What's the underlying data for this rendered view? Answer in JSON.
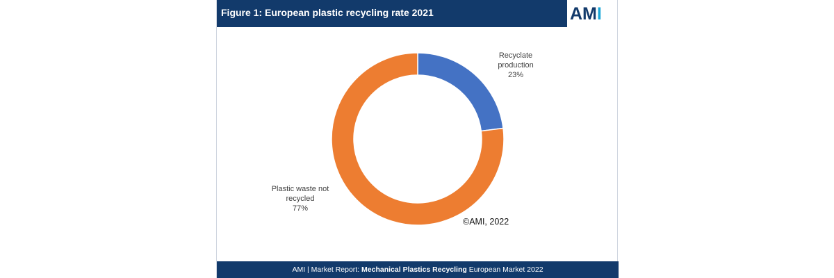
{
  "header": {
    "title": "Figure 1: European plastic recycling rate 2021",
    "logo_main": "AM",
    "logo_accent": "I"
  },
  "colors": {
    "header_bg": "#123a6b",
    "logo_accent": "#1aa7d8",
    "slice_recyclate": "#4472c4",
    "slice_not_recycled": "#ed7d31"
  },
  "chart_data": {
    "type": "pie",
    "style": "donut",
    "categories": [
      "Recyclate production",
      "Plastic waste not recycled"
    ],
    "values": [
      23,
      77
    ],
    "labels": [
      {
        "lines": [
          "Recyclate",
          "production",
          "23%"
        ]
      },
      {
        "lines": [
          "Plastic waste not",
          "recycled",
          "77%"
        ]
      }
    ],
    "colors": [
      "#4472c4",
      "#ed7d31"
    ]
  },
  "watermark": "©AMI, 2022",
  "footer": {
    "prefix": "AMI | Market Report: ",
    "bold": "Mechanical Plastics Recycling",
    "suffix": " European Market 2022"
  }
}
